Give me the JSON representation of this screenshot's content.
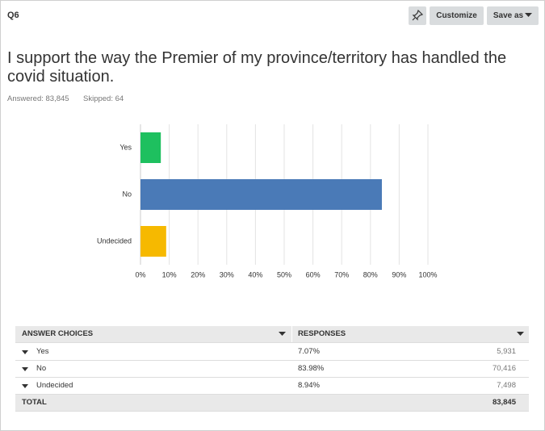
{
  "question_id": "Q6",
  "buttons": {
    "customize": "Customize",
    "save_as": "Save as"
  },
  "question": "I support the way the Premier of my province/territory has handled the covid situation.",
  "stats": {
    "answered": "Answered: 83,845",
    "skipped": "Skipped: 64"
  },
  "chart_data": {
    "type": "bar",
    "orientation": "horizontal",
    "categories": [
      "Yes",
      "No",
      "Undecided"
    ],
    "values": [
      7.07,
      83.98,
      8.94
    ],
    "colors": [
      "#1ec05f",
      "#4a7ab7",
      "#f6b900"
    ],
    "xlim": [
      0,
      100
    ],
    "xticks": [
      {
        "value": 0,
        "label": "0%"
      },
      {
        "value": 10,
        "label": "10%"
      },
      {
        "value": 20,
        "label": "20%"
      },
      {
        "value": 30,
        "label": "30%"
      },
      {
        "value": 40,
        "label": "40%"
      },
      {
        "value": 50,
        "label": "50%"
      },
      {
        "value": 60,
        "label": "60%"
      },
      {
        "value": 70,
        "label": "70%"
      },
      {
        "value": 80,
        "label": "80%"
      },
      {
        "value": 90,
        "label": "90%"
      },
      {
        "value": 100,
        "label": "100%"
      }
    ],
    "grid": true
  },
  "table": {
    "headers": [
      "ANSWER CHOICES",
      "RESPONSES"
    ],
    "rows": [
      [
        "Yes",
        "7.07%",
        "5,931"
      ],
      [
        "No",
        "83.98%",
        "70,416"
      ],
      [
        "Undecided",
        "8.94%",
        "7,498"
      ]
    ],
    "total": [
      "TOTAL",
      "83,845"
    ]
  }
}
